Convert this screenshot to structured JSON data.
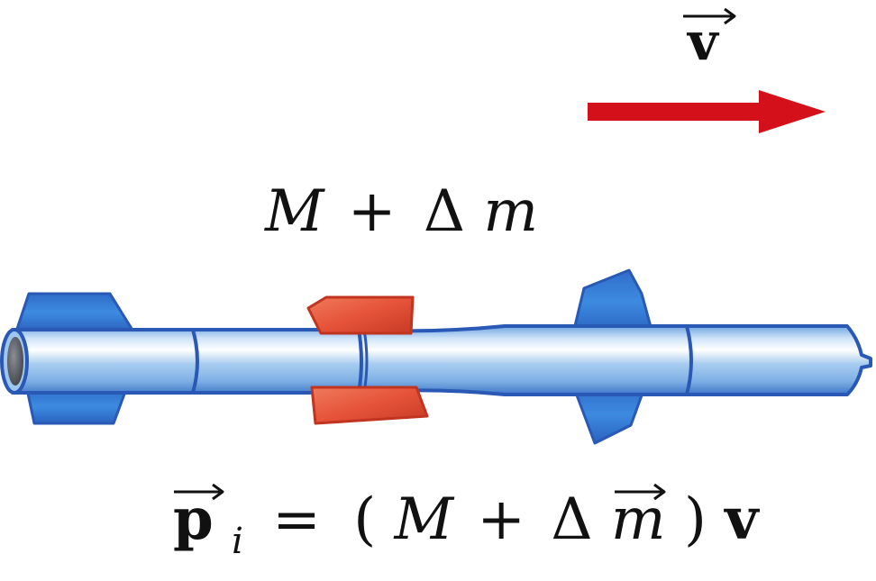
{
  "colors": {
    "velocity_arrow": "#d4101a",
    "rocket_body": "#9fc6ee",
    "rocket_outline": "#2a58b5",
    "fins": "#3a7ed8",
    "detachable_mass": "#e6553a",
    "text": "#111111"
  },
  "labels": {
    "velocity": {
      "symbol": "v",
      "has_vector_arrow": true
    },
    "mass": {
      "M": "M",
      "plus": "+",
      "delta": "Δ",
      "m": "m"
    },
    "momentum": {
      "p": "p",
      "subscript": "i",
      "equals": "=",
      "open_paren": "(",
      "M": "M",
      "plus": "+",
      "delta": "Δ",
      "m": "m",
      "close_paren": ")",
      "v": "v"
    }
  },
  "icons": {
    "rocket": "rocket-icon",
    "velocity_arrow": "arrow-right-icon"
  }
}
